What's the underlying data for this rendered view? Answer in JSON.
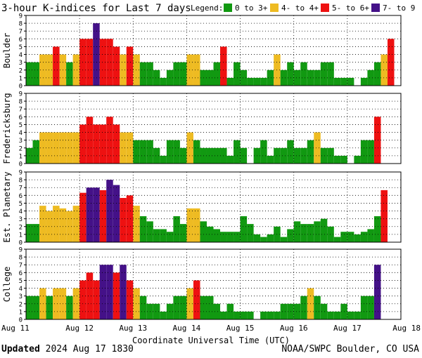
{
  "title": "3-hour K-indices for Last 7 days",
  "legend": {
    "label": "Legend:",
    "items": [
      {
        "label": "0 to 3+",
        "color": "#119911"
      },
      {
        "label": "4- to 4+",
        "color": "#eebb22"
      },
      {
        "label": "5- to 6+",
        "color": "#ee1111"
      },
      {
        "label": "7- to 9",
        "color": "#441188"
      }
    ]
  },
  "footer": {
    "updated_label": "Updated",
    "updated_value": "2024 Aug 17 1830",
    "source": "NOAA/SWPC Boulder, CO USA"
  },
  "chart_data": {
    "type": "bar",
    "x_tick_labels": [
      "Aug 11",
      "Aug 12",
      "Aug 13",
      "Aug 14",
      "Aug 15",
      "Aug 16",
      "Aug 17",
      "Aug 18"
    ],
    "xlabel": "Coordinate Universal Time (UTC)",
    "ylim": [
      0,
      9
    ],
    "y_ticks": [
      0,
      1,
      2,
      3,
      4,
      5,
      6,
      7,
      8,
      9
    ],
    "grid": true,
    "bins_per_day": 8,
    "panels": [
      {
        "ylabel": "Boulder",
        "values": [
          3,
          3,
          4,
          4,
          5,
          4,
          3,
          4,
          6,
          6,
          8,
          6,
          6,
          5,
          4,
          5,
          4,
          3,
          3,
          2,
          1,
          2,
          3,
          3,
          4,
          4,
          2,
          2,
          3,
          5,
          1,
          3,
          2,
          1,
          1,
          1,
          2,
          4,
          2,
          3,
          2,
          3,
          2,
          2,
          3,
          3,
          1,
          1,
          1,
          0,
          1,
          2,
          3,
          4,
          6,
          0
        ]
      },
      {
        "ylabel": "Fredericksburg",
        "values": [
          2,
          3,
          4,
          4,
          4,
          4,
          4,
          4,
          5,
          6,
          5,
          5,
          6,
          5,
          4,
          4,
          3,
          3,
          3,
          2,
          1,
          3,
          3,
          2,
          4,
          3,
          2,
          2,
          2,
          2,
          1,
          3,
          2,
          0,
          2,
          3,
          1,
          2,
          2,
          3,
          2,
          2,
          3,
          4,
          2,
          2,
          1,
          1,
          0,
          1,
          3,
          3,
          6,
          0
        ]
      },
      {
        "ylabel": "Est. Planetary",
        "values": [
          2.33,
          2.33,
          4.67,
          4,
          4.67,
          4.33,
          4,
          4.67,
          6.33,
          7,
          7,
          6.67,
          8,
          7.33,
          5.67,
          6,
          4.67,
          3.33,
          2.67,
          1.67,
          1.67,
          1.33,
          3.33,
          2.33,
          4.33,
          4.33,
          2.67,
          2,
          1.67,
          1.33,
          1.33,
          1.33,
          3.33,
          2.33,
          1,
          0.67,
          1,
          2,
          0.67,
          1.67,
          2.67,
          2.33,
          2.33,
          2.67,
          3,
          2,
          0.67,
          1.33,
          1.33,
          1,
          1.33,
          1.67,
          3.33,
          6.67,
          0
        ]
      },
      {
        "ylabel": "College",
        "values": [
          3,
          3,
          4,
          3,
          4,
          4,
          3,
          4,
          5,
          6,
          5,
          7,
          7,
          6,
          7,
          5,
          4,
          3,
          2,
          2,
          1,
          2,
          3,
          3,
          4,
          5,
          3,
          3,
          2,
          1,
          2,
          1,
          1,
          1,
          0,
          1,
          1,
          1,
          2,
          2,
          2,
          3,
          4,
          3,
          2,
          1,
          1,
          2,
          1,
          1,
          3,
          3,
          7,
          0
        ]
      }
    ]
  }
}
